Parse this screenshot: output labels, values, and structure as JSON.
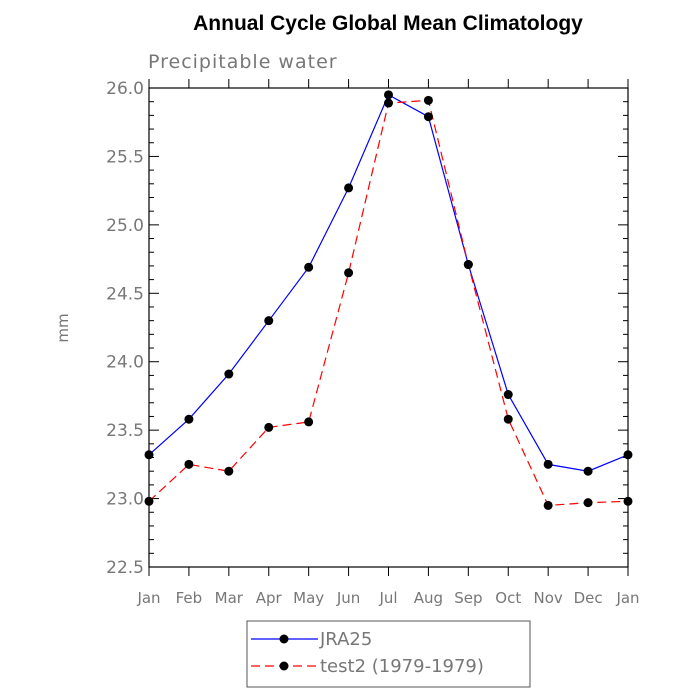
{
  "chart_data": {
    "type": "line",
    "title": "Annual Cycle Global Mean Climatology",
    "subtitle": "Precipitable water",
    "xlabel": "",
    "ylabel": "mm",
    "categories": [
      "Jan",
      "Feb",
      "Mar",
      "Apr",
      "May",
      "Jun",
      "Jul",
      "Aug",
      "Sep",
      "Oct",
      "Nov",
      "Dec",
      "Jan"
    ],
    "ylim": [
      22.5,
      26.0
    ],
    "yticks": [
      "22.5",
      "23.0",
      "23.5",
      "24.0",
      "24.5",
      "25.0",
      "25.5",
      "26.0"
    ],
    "grid": false,
    "legend_position": "bottom",
    "series": [
      {
        "name": "JRA25",
        "color": "#0000ff",
        "line_style": "solid",
        "marker": "filled-circle",
        "values": [
          23.32,
          23.58,
          23.91,
          24.3,
          24.69,
          25.27,
          25.95,
          25.79,
          24.71,
          23.76,
          23.25,
          23.2,
          23.32
        ]
      },
      {
        "name": "test2 (1979-1979)",
        "color": "#ff0000",
        "line_style": "dashed",
        "marker": "filled-circle",
        "values": [
          22.98,
          23.25,
          23.2,
          23.52,
          23.56,
          24.65,
          25.89,
          25.91,
          24.71,
          23.58,
          22.95,
          22.97,
          22.98
        ]
      }
    ]
  }
}
